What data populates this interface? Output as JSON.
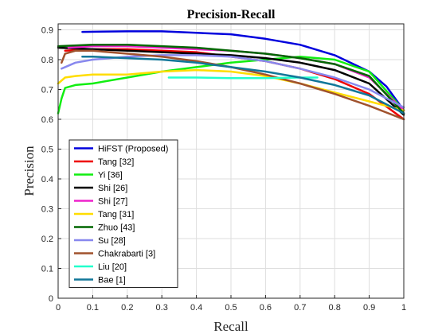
{
  "chart_data": {
    "type": "line",
    "title": "Precision-Recall",
    "xlabel": "Recall",
    "ylabel": "Precision",
    "xlim": [
      0,
      1
    ],
    "ylim": [
      0,
      0.92
    ],
    "xticks": [
      "0",
      "0.1",
      "0.2",
      "0.3",
      "0.4",
      "0.5",
      "0.6",
      "0.7",
      "0.8",
      "0.9",
      "1"
    ],
    "yticks": [
      "0",
      "0.1",
      "0.2",
      "0.3",
      "0.4",
      "0.5",
      "0.6",
      "0.7",
      "0.8",
      "0.9"
    ],
    "grid": true,
    "legend_position": "bottom-left",
    "series": [
      {
        "name": "HiFST (Proposed)",
        "color": "#0000dd",
        "x": [
          0.07,
          0.2,
          0.3,
          0.4,
          0.5,
          0.6,
          0.7,
          0.8,
          0.9,
          0.95,
          1.0
        ],
        "y": [
          0.893,
          0.895,
          0.895,
          0.89,
          0.885,
          0.87,
          0.85,
          0.815,
          0.76,
          0.71,
          0.63
        ]
      },
      {
        "name": "Tang [32]",
        "color": "#ee0000",
        "x": [
          0.02,
          0.1,
          0.2,
          0.3,
          0.4,
          0.5,
          0.6,
          0.7,
          0.8,
          0.9,
          1.0
        ],
        "y": [
          0.83,
          0.835,
          0.835,
          0.83,
          0.825,
          0.81,
          0.795,
          0.77,
          0.735,
          0.685,
          0.6
        ]
      },
      {
        "name": "Yi [36]",
        "color": "#11ee11",
        "x": [
          0.0,
          0.01,
          0.02,
          0.05,
          0.1,
          0.2,
          0.3,
          0.4,
          0.5,
          0.6,
          0.7,
          0.8,
          0.9,
          1.0
        ],
        "y": [
          0.62,
          0.67,
          0.705,
          0.715,
          0.72,
          0.74,
          0.76,
          0.775,
          0.79,
          0.8,
          0.81,
          0.8,
          0.76,
          0.63
        ]
      },
      {
        "name": "Shi [26]",
        "color": "#000000",
        "x": [
          0.0,
          0.1,
          0.2,
          0.3,
          0.4,
          0.5,
          0.6,
          0.7,
          0.8,
          0.9,
          1.0
        ],
        "y": [
          0.84,
          0.835,
          0.83,
          0.825,
          0.82,
          0.815,
          0.805,
          0.79,
          0.765,
          0.72,
          0.615
        ]
      },
      {
        "name": "Shi [27]",
        "color": "#ee22cc",
        "x": [
          0.03,
          0.1,
          0.2,
          0.3,
          0.4,
          0.5,
          0.6,
          0.7,
          0.8,
          0.9,
          1.0
        ],
        "y": [
          0.84,
          0.845,
          0.845,
          0.84,
          0.835,
          0.83,
          0.82,
          0.805,
          0.785,
          0.74,
          0.63
        ]
      },
      {
        "name": "Tang [31]",
        "color": "#ffdd00",
        "x": [
          0.0,
          0.02,
          0.05,
          0.1,
          0.2,
          0.3,
          0.4,
          0.5,
          0.6,
          0.7,
          0.8,
          0.9,
          1.0
        ],
        "y": [
          0.72,
          0.74,
          0.745,
          0.75,
          0.75,
          0.76,
          0.765,
          0.76,
          0.745,
          0.72,
          0.69,
          0.66,
          0.63
        ]
      },
      {
        "name": "Zhuo [43]",
        "color": "#006600",
        "x": [
          0.0,
          0.1,
          0.2,
          0.3,
          0.4,
          0.5,
          0.6,
          0.7,
          0.8,
          0.9,
          1.0
        ],
        "y": [
          0.845,
          0.85,
          0.85,
          0.845,
          0.84,
          0.83,
          0.82,
          0.805,
          0.785,
          0.745,
          0.62
        ]
      },
      {
        "name": "Su [28]",
        "color": "#8888ee",
        "x": [
          0.01,
          0.05,
          0.1,
          0.2,
          0.3,
          0.4,
          0.5,
          0.6,
          0.7,
          0.8,
          0.9,
          1.0
        ],
        "y": [
          0.77,
          0.79,
          0.8,
          0.81,
          0.815,
          0.815,
          0.81,
          0.795,
          0.77,
          0.74,
          0.7,
          0.64
        ]
      },
      {
        "name": "Chakrabarti [3]",
        "color": "#a0522d",
        "x": [
          0.01,
          0.02,
          0.05,
          0.1,
          0.2,
          0.3,
          0.4,
          0.5,
          0.6,
          0.7,
          0.8,
          0.9,
          1.0
        ],
        "y": [
          0.79,
          0.82,
          0.83,
          0.83,
          0.82,
          0.81,
          0.795,
          0.775,
          0.75,
          0.72,
          0.685,
          0.645,
          0.6
        ]
      },
      {
        "name": "Liu [20]",
        "color": "#22ffcc",
        "x": [
          0.32,
          0.4,
          0.5,
          0.6,
          0.7,
          0.75
        ],
        "y": [
          0.74,
          0.74,
          0.738,
          0.738,
          0.74,
          0.74
        ]
      },
      {
        "name": "Bae [1]",
        "color": "#117799",
        "x": [
          0.07,
          0.1,
          0.2,
          0.3,
          0.4,
          0.5,
          0.6,
          0.7,
          0.8,
          0.9,
          1.0
        ],
        "y": [
          0.81,
          0.81,
          0.805,
          0.8,
          0.79,
          0.775,
          0.76,
          0.74,
          0.715,
          0.68,
          0.62
        ]
      }
    ]
  }
}
